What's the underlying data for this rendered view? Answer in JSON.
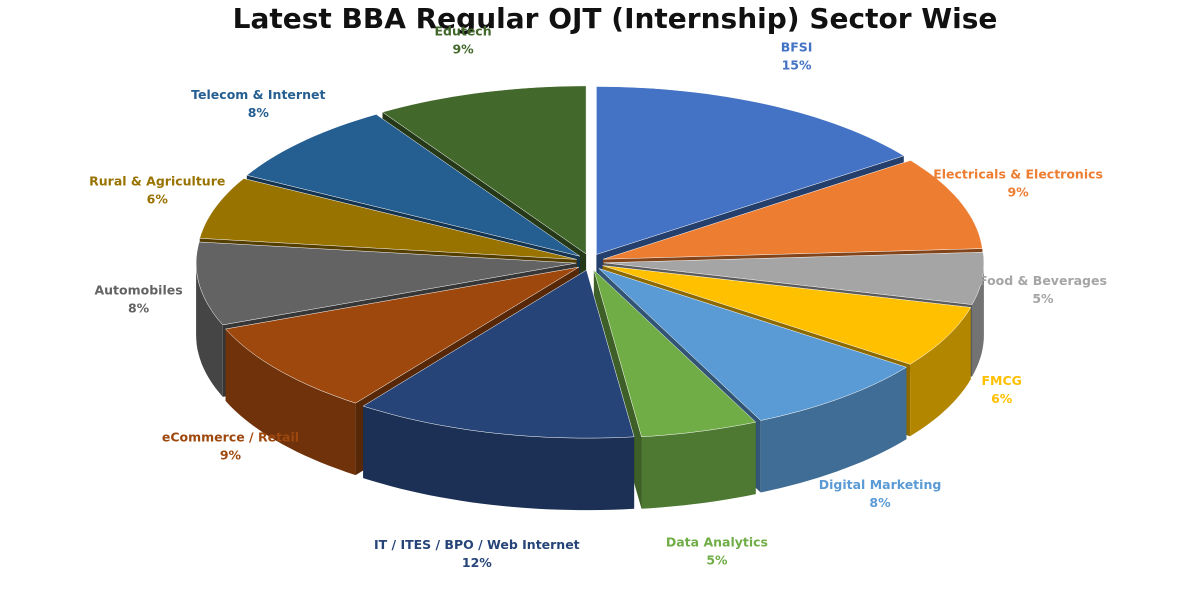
{
  "chart_data": {
    "type": "pie3d",
    "title": "Latest BBA Regular OJT (Internship) Sector Wise",
    "categories": [
      "BFSI",
      "Electricals & Electronics",
      "Food & Beverages",
      "FMCG",
      "Digital Marketing",
      "Data Analytics",
      "IT / ITES / BPO / Web Internet",
      "eCommerce / Retail",
      "Automobiles",
      "Rural & Agriculture",
      "Telecom & Internet",
      "Edutech"
    ],
    "values": [
      15,
      9,
      5,
      6,
      8,
      5,
      12,
      9,
      8,
      6,
      8,
      9
    ],
    "value_labels": [
      "15%",
      "9%",
      "5%",
      "6%",
      "8%",
      "5%",
      "12%",
      "9%",
      "8%",
      "6%",
      "8%",
      "9%"
    ],
    "colors": [
      "#4472c4",
      "#ed7d31",
      "#a5a5a5",
      "#ffc000",
      "#5b9bd5",
      "#70ad47",
      "#264478",
      "#9e480e",
      "#636363",
      "#997300",
      "#255e91",
      "#43682b"
    ]
  }
}
